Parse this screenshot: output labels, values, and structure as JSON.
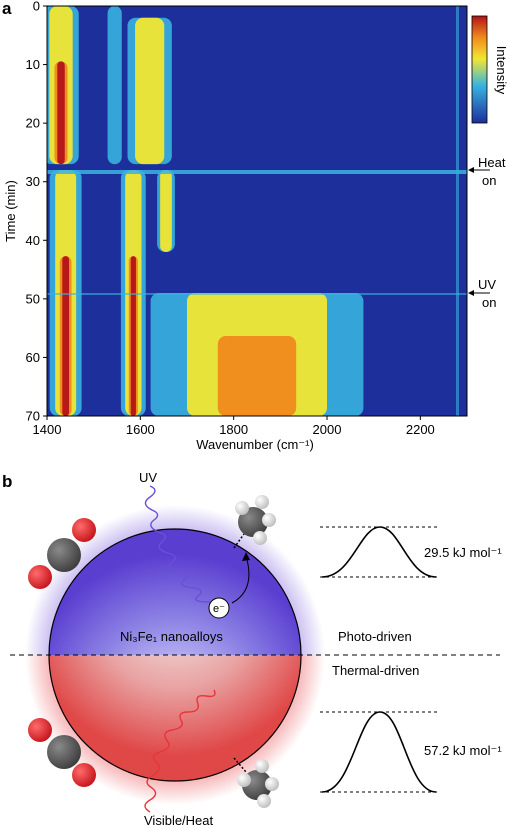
{
  "panel_a": {
    "letter": "a",
    "y_axis_label": "Time (min)",
    "x_axis_label": "Wavenumber (cm⁻¹)",
    "colorbar_label": "Intensity",
    "annotations": [
      {
        "line1": "Heat",
        "line2": "on",
        "time_min": 28
      },
      {
        "line1": "UV",
        "line2": "on",
        "time_min": 49
      }
    ],
    "y_ticks": [
      "0",
      "10",
      "20",
      "30",
      "40",
      "50",
      "60",
      "70"
    ],
    "x_ticks": [
      "1400",
      "1600",
      "1800",
      "2000",
      "2200"
    ],
    "colors": {
      "low": "#1c2f9a",
      "mid": "#39b3e0",
      "yellow": "#f2e632",
      "high": "#b3121a"
    }
  },
  "panel_b": {
    "letter": "b",
    "uv_label": "UV",
    "visible_label": "Visible/Heat",
    "electron_label": "e⁻",
    "particle_label": "Ni₃Fe₁ nanoalloys",
    "photo_label": "Photo-driven",
    "thermal_label": "Thermal-driven",
    "barrier_photo": "29.5 kJ mol⁻¹",
    "barrier_thermal": "57.2 kJ mol⁻¹",
    "colors": {
      "blue_glow": "#6b4fd8",
      "red_glow": "#e8343a",
      "oxygen": "#d8242b",
      "carbon": "#555555"
    }
  },
  "chart_data": {
    "type": "heatmap",
    "xlabel": "Wavenumber (cm⁻¹)",
    "ylabel": "Time (min)",
    "xlim": [
      1400,
      2300
    ],
    "ylim": [
      0,
      70
    ],
    "colorbar": "Intensity",
    "bands": [
      {
        "center": 1430,
        "width": 20,
        "t0": 0,
        "t1": 27,
        "level": 0.95
      },
      {
        "center": 1545,
        "width": 8,
        "t0": 0,
        "t1": 27,
        "level": 0.55
      },
      {
        "center": 1620,
        "width": 25,
        "t0": 2,
        "t1": 27,
        "level": 0.8
      },
      {
        "center": 1440,
        "width": 18,
        "t0": 28,
        "t1": 70,
        "level": 1.0
      },
      {
        "center": 1585,
        "width": 14,
        "t0": 28,
        "t1": 70,
        "level": 0.95
      },
      {
        "center": 1655,
        "width": 10,
        "t0": 28,
        "t1": 42,
        "level": 0.7
      },
      {
        "center": 1850,
        "width": 120,
        "t0": 49,
        "t1": 70,
        "level": 0.9
      }
    ]
  }
}
